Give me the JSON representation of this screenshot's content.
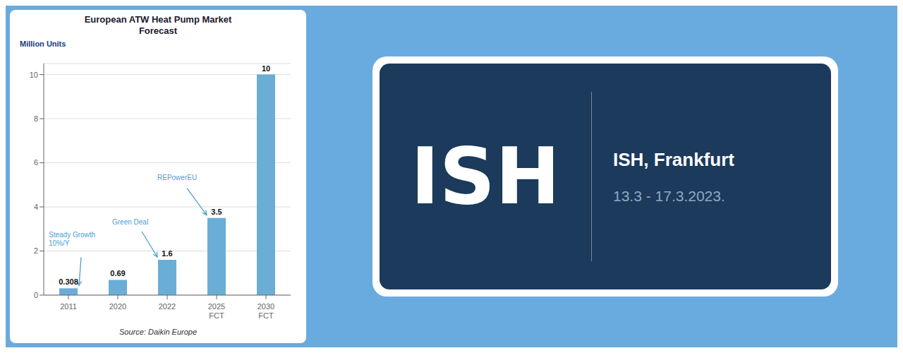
{
  "chart_data": {
    "type": "bar",
    "title": "European ATW Heat Pump Market\nForecast",
    "y_label": "Million Units",
    "categories": [
      "2011",
      "2020",
      "2022",
      "2025\nFCT",
      "2030\nFCT"
    ],
    "values": [
      0.308,
      0.69,
      1.6,
      3.5,
      10.0
    ],
    "color": "#6aaed6",
    "ylim": [
      0,
      10.5
    ],
    "yticks": [
      0,
      2,
      4,
      6,
      8,
      10
    ],
    "grid": true,
    "data_labels": true,
    "annotations": [
      {
        "text": "Steady Growth\n10%/Y",
        "category": "2011"
      },
      {
        "text": "Green Deal",
        "category": "2022"
      },
      {
        "text": "REPowerEU",
        "category": "2025\nFCT"
      },
      {
        "text": "ISH"
      },
      {
        "text": "ISH, Frankfurt"
      },
      {
        "text": "13.3 - 17.3.2023."
      }
    ],
    "source": "Source: Daikin Europe"
  }
}
